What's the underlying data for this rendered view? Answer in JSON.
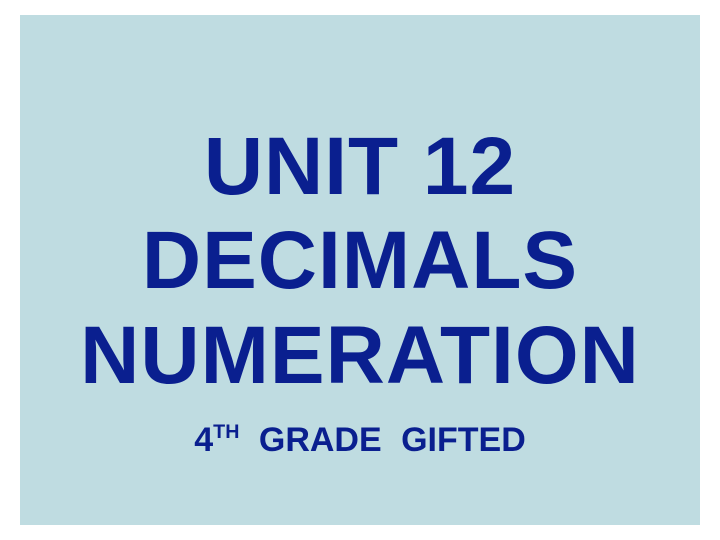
{
  "slide": {
    "background_color": "#bfdce1",
    "text_color": "#0a1f8f",
    "title_line_1": "UNIT  12",
    "title_line_2": "DECIMALS",
    "title_line_3": "NUMERATION",
    "subtitle_prefix": "4",
    "subtitle_super": "TH",
    "subtitle_rest": "  GRADE  GIFTED",
    "title_fontsize": 82,
    "subtitle_fontsize": 34,
    "font_family": "Arial, Helvetica, sans-serif",
    "font_weight": "bold"
  }
}
